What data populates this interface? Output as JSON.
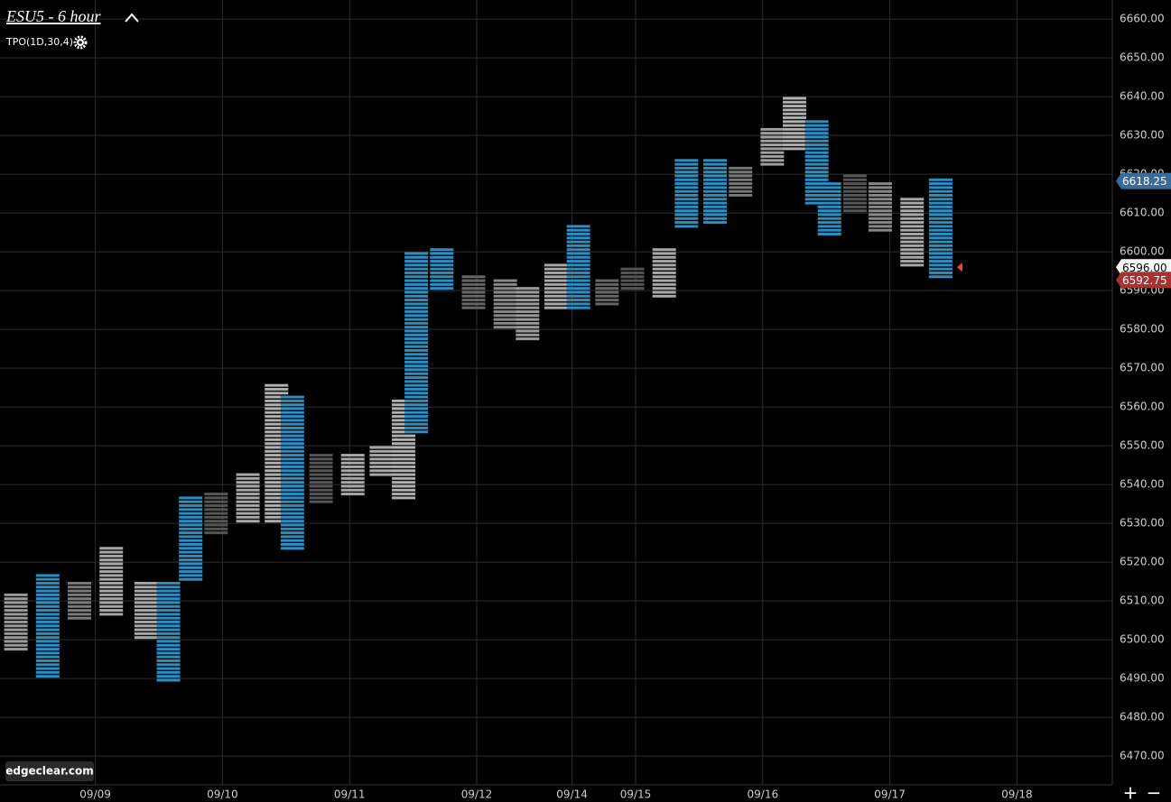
{
  "chart_data": {
    "type": "tpo",
    "title": "ESU5 - 6 hour",
    "indicator": "TPO(1D,30,4)",
    "watermark": "edgeclear.com",
    "zoom_in": "+",
    "zoom_out": "−",
    "xlim": [
      0,
      35
    ],
    "ylim": [
      6462.6,
      6664.9
    ],
    "xticks": [
      {
        "value": 3,
        "label": "09/09"
      },
      {
        "value": 7,
        "label": "09/10"
      },
      {
        "value": 11,
        "label": "09/11"
      },
      {
        "value": 15,
        "label": "09/12"
      },
      {
        "value": 18,
        "label": "09/14"
      },
      {
        "value": 20,
        "label": "09/15"
      },
      {
        "value": 24,
        "label": "09/16"
      },
      {
        "value": 28,
        "label": "09/17"
      },
      {
        "value": 32,
        "label": "09/18"
      }
    ],
    "yticks": [
      {
        "value": 6470,
        "label": "6470.00"
      },
      {
        "value": 6480,
        "label": "6480.00"
      },
      {
        "value": 6490,
        "label": "6490.00"
      },
      {
        "value": 6500,
        "label": "6500.00"
      },
      {
        "value": 6510,
        "label": "6510.00"
      },
      {
        "value": 6520,
        "label": "6520.00"
      },
      {
        "value": 6530,
        "label": "6530.00"
      },
      {
        "value": 6540,
        "label": "6540.00"
      },
      {
        "value": 6550,
        "label": "6550.00"
      },
      {
        "value": 6560,
        "label": "6560.00"
      },
      {
        "value": 6570,
        "label": "6570.00"
      },
      {
        "value": 6580,
        "label": "6580.00"
      },
      {
        "value": 6590,
        "label": "6590.00"
      },
      {
        "value": 6600,
        "label": "6600.00"
      },
      {
        "value": 6610,
        "label": "6610.00"
      },
      {
        "value": 6620,
        "label": "6620.00"
      },
      {
        "value": 6630,
        "label": "6630.00"
      },
      {
        "value": 6640,
        "label": "6640.00"
      },
      {
        "value": 6650,
        "label": "6650.00"
      },
      {
        "value": 6660,
        "label": "6660.00"
      }
    ],
    "grid": true,
    "bars": {
      "x": [
        0.5,
        1.5,
        2.5,
        3.5,
        4.6,
        5.3,
        6.0,
        6.8,
        7.8,
        8.7,
        9.2,
        10.1,
        11.1,
        12.0,
        12.7,
        13.1,
        13.9,
        14.9,
        15.9,
        16.6,
        17.5,
        18.2,
        19.1,
        19.9,
        20.9,
        21.6,
        22.5,
        23.3,
        24.3,
        25.0,
        25.7,
        26.1,
        26.9,
        27.7,
        28.7,
        29.6
      ],
      "lows": [
        6497,
        6490,
        6505,
        6506,
        6500,
        6489,
        6515,
        6527,
        6530,
        6530,
        6523,
        6535,
        6537,
        6542,
        6536,
        6553,
        6590,
        6585,
        6580,
        6577,
        6585,
        6585,
        6586,
        6590,
        6588,
        6606,
        6607,
        6614,
        6622,
        6626,
        6612,
        6604,
        6610,
        6605,
        6596,
        6593
      ],
      "highs": [
        6512,
        6517,
        6515,
        6524,
        6515,
        6515,
        6537,
        6538,
        6543,
        6566,
        6563,
        6548,
        6548,
        6550,
        6562,
        6600,
        6601,
        6594,
        6593,
        6591,
        6597,
        6607,
        6593,
        6596,
        6601,
        6624,
        6624,
        6622,
        6632,
        6640,
        6634,
        6618,
        6620,
        6618,
        6614,
        6619
      ],
      "colors": [
        "#9a9a9a",
        "#2b8fc4",
        "#7a7a7a",
        "#a8a8a8",
        "#a8a8a8",
        "#2b8fc4",
        "#2b8fc4",
        "#555555",
        "#a8a8a8",
        "#b0b0b0",
        "#2b8fc4",
        "#555555",
        "#a8a8a8",
        "#a8a8a8",
        "#b0b0b0",
        "#2b8fc4",
        "#2b8fc4",
        "#666666",
        "#888888",
        "#9a9a9a",
        "#a8a8a8",
        "#2b8fc4",
        "#666666",
        "#555555",
        "#a8a8a8",
        "#2b8fc4",
        "#2b8fc4",
        "#777777",
        "#a0a0a0",
        "#b0b0b0",
        "#2b8fc4",
        "#2b8fc4",
        "#555555",
        "#888888",
        "#a8a8a8",
        "#2b8fc4"
      ]
    },
    "price_labels": {
      "values": [
        6618.25,
        6596,
        6592.75
      ],
      "value_labels": [
        "6618.25",
        "6596.00",
        "6592.75"
      ],
      "colors": [
        "#3a6c9a",
        "#ffffff",
        "#a83232"
      ]
    }
  }
}
